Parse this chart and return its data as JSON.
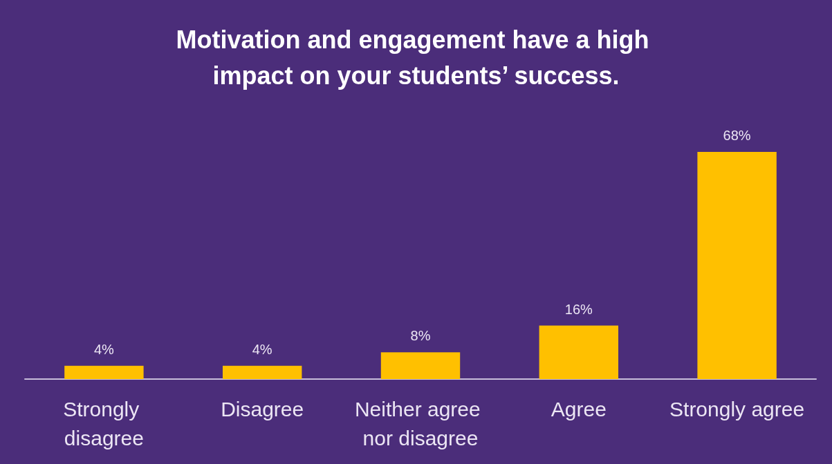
{
  "chart_data": {
    "type": "bar",
    "title": "Motivation and engagement have a high impact on your students’ success.",
    "categories": [
      "Strongly disagree",
      "Disagree",
      "Neither agree nor disagree",
      "Agree",
      "Strongly agree"
    ],
    "values": [
      4,
      4,
      8,
      16,
      68
    ],
    "value_labels": [
      "4%",
      "4%",
      "8%",
      "16%",
      "68%"
    ],
    "color": "#ffc000"
  }
}
